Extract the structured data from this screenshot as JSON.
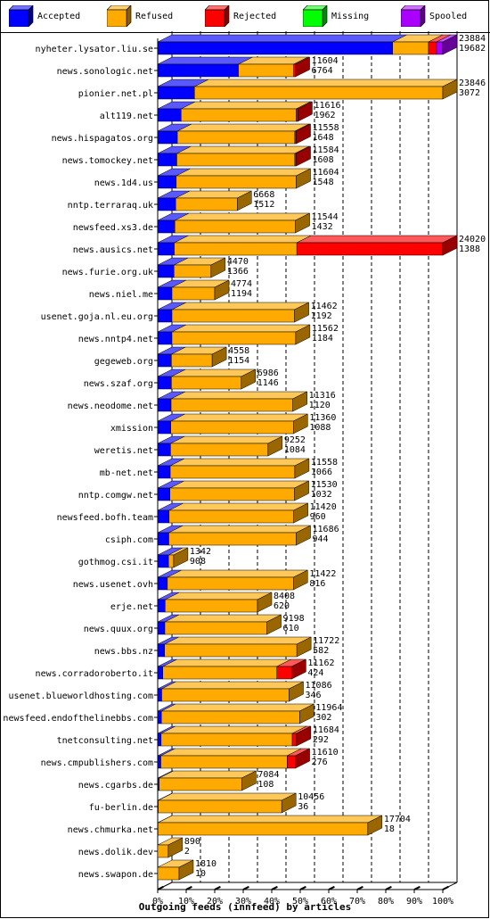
{
  "legend": {
    "items": [
      {
        "label": "Accepted",
        "color": "#0000ff"
      },
      {
        "label": "Refused",
        "color": "#ffaa00"
      },
      {
        "label": "Rejected",
        "color": "#ff0000"
      },
      {
        "label": "Missing",
        "color": "#00ff00"
      },
      {
        "label": "Spooled",
        "color": "#aa00ff"
      }
    ]
  },
  "chart_data": {
    "type": "bar",
    "orientation": "horizontal",
    "stacked": true,
    "title": "",
    "xlabel": "Outgoing feeds (innfeed) by articles",
    "ylabel": "",
    "xlim": [
      0,
      100
    ],
    "x_ticks": [
      "0%",
      "10%",
      "20%",
      "30%",
      "40%",
      "50%",
      "60%",
      "70%",
      "80%",
      "90%",
      "100%"
    ],
    "grid": "vertical dashed every 10%",
    "legend_position": "top",
    "series_names": [
      "Accepted",
      "Refused",
      "Rejected",
      "Missing",
      "Spooled"
    ],
    "series_colors": [
      "#0000ff",
      "#ffaa00",
      "#ff0000",
      "#00ff00",
      "#aa00ff"
    ],
    "rows": [
      {
        "host": "nyheter.lysator.liu.se",
        "offered": "23884",
        "accepted": "19682",
        "pct": [
          82.4,
          12.6,
          2.8,
          0,
          2.2
        ]
      },
      {
        "host": "news.sonologic.net",
        "offered": "11604",
        "accepted": "6764",
        "pct": [
          28.3,
          19.4,
          0.6,
          0,
          0
        ]
      },
      {
        "host": "pionier.net.pl",
        "offered": "23846",
        "accepted": "3072",
        "pct": [
          12.9,
          87.1,
          0,
          0,
          0
        ]
      },
      {
        "host": "alt119.net",
        "offered": "11616",
        "accepted": "1962",
        "pct": [
          8.2,
          40.4,
          0.6,
          0,
          0
        ]
      },
      {
        "host": "news.hispagatos.org",
        "offered": "11558",
        "accepted": "1648",
        "pct": [
          6.9,
          41.2,
          0.5,
          0,
          0
        ]
      },
      {
        "host": "news.tomockey.net",
        "offered": "11584",
        "accepted": "1608",
        "pct": [
          6.7,
          41.4,
          0.5,
          0,
          0
        ]
      },
      {
        "host": "news.1d4.us",
        "offered": "11604",
        "accepted": "1548",
        "pct": [
          6.5,
          42.1,
          0,
          0,
          0
        ]
      },
      {
        "host": "nntp.terraraq.uk",
        "offered": "6668",
        "accepted": "1512",
        "pct": [
          6.3,
          21.6,
          0,
          0,
          0
        ]
      },
      {
        "host": "newsfeed.xs3.de",
        "offered": "11544",
        "accepted": "1432",
        "pct": [
          6.0,
          42.3,
          0,
          0,
          0
        ]
      },
      {
        "host": "news.ausics.net",
        "offered": "24020",
        "accepted": "1388",
        "pct": [
          5.8,
          43.0,
          51.2,
          0,
          0
        ]
      },
      {
        "host": "news.furie.org.uk",
        "offered": "4470",
        "accepted": "1366",
        "pct": [
          5.7,
          13.0,
          0,
          0,
          0
        ]
      },
      {
        "host": "news.niel.me",
        "offered": "4774",
        "accepted": "1194",
        "pct": [
          5.0,
          15.0,
          0,
          0,
          0
        ]
      },
      {
        "host": "usenet.goja.nl.eu.org",
        "offered": "11462",
        "accepted": "1192",
        "pct": [
          5.0,
          43.0,
          0,
          0,
          0
        ]
      },
      {
        "host": "news.nntp4.net",
        "offered": "11562",
        "accepted": "1184",
        "pct": [
          5.0,
          43.4,
          0,
          0,
          0
        ]
      },
      {
        "host": "gegeweb.org",
        "offered": "4558",
        "accepted": "1154",
        "pct": [
          4.8,
          14.3,
          0,
          0,
          0
        ]
      },
      {
        "host": "news.szaf.org",
        "offered": "6986",
        "accepted": "1146",
        "pct": [
          4.8,
          24.5,
          0,
          0,
          0
        ]
      },
      {
        "host": "news.neodome.net",
        "offered": "11316",
        "accepted": "1120",
        "pct": [
          4.7,
          42.7,
          0,
          0,
          0
        ]
      },
      {
        "host": "xmission",
        "offered": "11360",
        "accepted": "1088",
        "pct": [
          4.6,
          43.0,
          0,
          0,
          0
        ]
      },
      {
        "host": "weretis.net",
        "offered": "9252",
        "accepted": "1084",
        "pct": [
          4.5,
          34.2,
          0,
          0,
          0
        ]
      },
      {
        "host": "mb-net.net",
        "offered": "11558",
        "accepted": "1066",
        "pct": [
          4.4,
          43.7,
          0,
          0,
          0
        ]
      },
      {
        "host": "nntp.comgw.net",
        "offered": "11530",
        "accepted": "1032",
        "pct": [
          4.3,
          43.7,
          0,
          0,
          0
        ]
      },
      {
        "host": "newsfeed.bofh.team",
        "offered": "11420",
        "accepted": "960",
        "pct": [
          4.0,
          43.7,
          0,
          0,
          0
        ]
      },
      {
        "host": "csiph.com",
        "offered": "11686",
        "accepted": "944",
        "pct": [
          3.9,
          44.7,
          0,
          0,
          0
        ]
      },
      {
        "host": "gothmog.csi.it",
        "offered": "1342",
        "accepted": "908",
        "pct": [
          3.8,
          1.8,
          0,
          0,
          0
        ]
      },
      {
        "host": "news.usenet.ovh",
        "offered": "11422",
        "accepted": "816",
        "pct": [
          3.4,
          44.2,
          0,
          0,
          0
        ]
      },
      {
        "host": "erje.net",
        "offered": "8408",
        "accepted": "620",
        "pct": [
          2.6,
          32.4,
          0,
          0,
          0
        ]
      },
      {
        "host": "news.quux.org",
        "offered": "9198",
        "accepted": "610",
        "pct": [
          2.5,
          35.8,
          0,
          0,
          0
        ]
      },
      {
        "host": "news.bbs.nz",
        "offered": "11722",
        "accepted": "582",
        "pct": [
          2.4,
          46.4,
          0,
          0,
          0
        ]
      },
      {
        "host": "news.corradoroberto.it",
        "offered": "11162",
        "accepted": "424",
        "pct": [
          1.8,
          40.0,
          5.2,
          0,
          0
        ]
      },
      {
        "host": "usenet.blueworldhosting.com",
        "offered": "11086",
        "accepted": "346",
        "pct": [
          1.4,
          44.7,
          0,
          0,
          0
        ]
      },
      {
        "host": "newsfeed.endofthelinebbs.com",
        "offered": "11964",
        "accepted": "302",
        "pct": [
          1.3,
          48.5,
          0,
          0,
          0
        ]
      },
      {
        "host": "tnetconsulting.net",
        "offered": "11684",
        "accepted": "292",
        "pct": [
          1.2,
          46.0,
          1.5,
          0,
          0
        ]
      },
      {
        "host": "news.cmpublishers.com",
        "offered": "11610",
        "accepted": "276",
        "pct": [
          1.1,
          44.3,
          2.9,
          0,
          0
        ]
      },
      {
        "host": "news.cgarbs.de",
        "offered": "7084",
        "accepted": "108",
        "pct": [
          0.5,
          29.0,
          0,
          0,
          0
        ]
      },
      {
        "host": "fu-berlin.de",
        "offered": "10456",
        "accepted": "36",
        "pct": [
          0.2,
          43.3,
          0,
          0,
          0
        ]
      },
      {
        "host": "news.chmurka.net",
        "offered": "17704",
        "accepted": "18",
        "pct": [
          0.1,
          73.6,
          0,
          0,
          0
        ]
      },
      {
        "host": "news.dolik.dev",
        "offered": "890",
        "accepted": "2",
        "pct": [
          0,
          3.7,
          0,
          0,
          0
        ]
      },
      {
        "host": "news.swapon.de",
        "offered": "1810",
        "accepted": "10",
        "pct": [
          0,
          7.5,
          0,
          0,
          0
        ]
      }
    ]
  }
}
